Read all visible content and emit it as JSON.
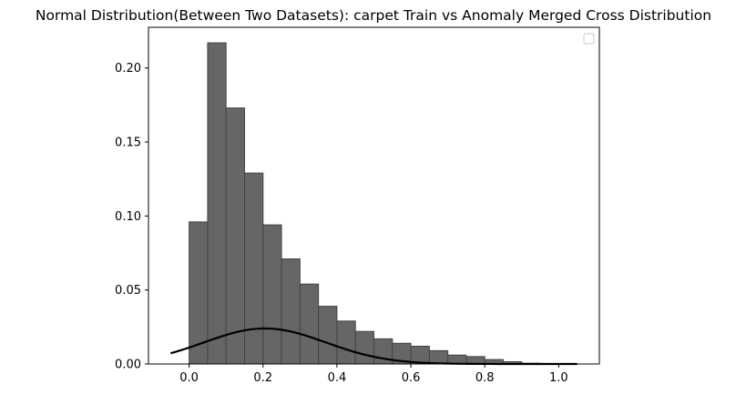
{
  "chart_data": {
    "type": "bar",
    "title": "Normal Distribution(Between Two Datasets): carpet Train vs Anomaly Merged Cross Distribution",
    "xlabel": "",
    "ylabel": "",
    "xlim": [
      -0.11,
      1.11
    ],
    "ylim": [
      0.0,
      0.2275
    ],
    "grid": false,
    "legend": {
      "placement": "top-right",
      "entries": []
    },
    "x_ticks": [
      {
        "value": 0.0,
        "label": "0.0"
      },
      {
        "value": 0.2,
        "label": "0.2"
      },
      {
        "value": 0.4,
        "label": "0.4"
      },
      {
        "value": 0.6,
        "label": "0.6"
      },
      {
        "value": 0.8,
        "label": "0.8"
      },
      {
        "value": 1.0,
        "label": "1.0"
      }
    ],
    "y_ticks": [
      {
        "value": 0.0,
        "label": "0.00"
      },
      {
        "value": 0.05,
        "label": "0.05"
      },
      {
        "value": 0.1,
        "label": "0.10"
      },
      {
        "value": 0.15,
        "label": "0.15"
      },
      {
        "value": 0.2,
        "label": "0.20"
      }
    ],
    "histogram": {
      "fill_color": "#666666",
      "edge_color": "#444444",
      "bin_edges": [
        0.0,
        0.05,
        0.1,
        0.15,
        0.2,
        0.25,
        0.3,
        0.35,
        0.4,
        0.45,
        0.5,
        0.55,
        0.6,
        0.65,
        0.7,
        0.75,
        0.8,
        0.85,
        0.9,
        0.95,
        1.0
      ],
      "values": [
        0.096,
        0.217,
        0.173,
        0.129,
        0.094,
        0.071,
        0.054,
        0.039,
        0.029,
        0.022,
        0.017,
        0.014,
        0.012,
        0.009,
        0.006,
        0.005,
        0.003,
        0.0015,
        0.0005,
        0.0003
      ]
    },
    "curve": {
      "type": "line",
      "color": "#000000",
      "x_range": [
        -0.05,
        1.05
      ],
      "mean": 0.205,
      "std": 0.165,
      "peak": 0.024
    }
  }
}
